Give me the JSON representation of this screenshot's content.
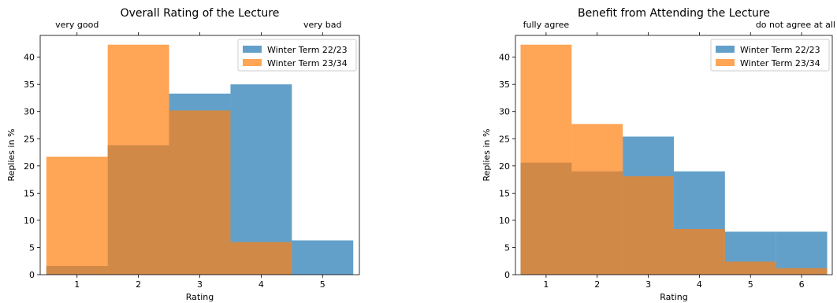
{
  "chart_data": [
    {
      "type": "bar",
      "title": "Overall Rating of the Lecture",
      "xlabel": "Rating",
      "ylabel": "Replies in %",
      "categories": [
        "1",
        "2",
        "3",
        "4",
        "5"
      ],
      "top_labels": [
        "very good",
        "very bad"
      ],
      "ylim": [
        0,
        44
      ],
      "yticks": [
        0,
        5,
        10,
        15,
        20,
        25,
        30,
        35,
        40
      ],
      "legend": "top-right",
      "grid": false,
      "series": [
        {
          "name": "Winter Term 22/23",
          "color": "#1f77b4",
          "values": [
            1.6,
            23.8,
            33.3,
            35.0,
            6.3
          ]
        },
        {
          "name": "Winter Term 23/34",
          "color": "#ff7f0e",
          "values": [
            21.7,
            42.3,
            30.2,
            6.0,
            0
          ]
        }
      ]
    },
    {
      "type": "bar",
      "title": "Benefit from Attending the Lecture",
      "xlabel": "Rating",
      "ylabel": "Replies in %",
      "categories": [
        "1",
        "2",
        "3",
        "4",
        "5",
        "6"
      ],
      "top_labels": [
        "fully agree",
        "do not agree at all"
      ],
      "ylim": [
        0,
        44
      ],
      "yticks": [
        0,
        5,
        10,
        15,
        20,
        25,
        30,
        35,
        40
      ],
      "legend": "top-right",
      "grid": false,
      "series": [
        {
          "name": "Winter Term 22/23",
          "color": "#1f77b4",
          "values": [
            20.6,
            19.0,
            25.4,
            19.0,
            7.9,
            7.9
          ]
        },
        {
          "name": "Winter Term 23/34",
          "color": "#ff7f0e",
          "values": [
            42.3,
            27.7,
            18.1,
            8.4,
            2.4,
            1.2
          ]
        }
      ]
    }
  ]
}
